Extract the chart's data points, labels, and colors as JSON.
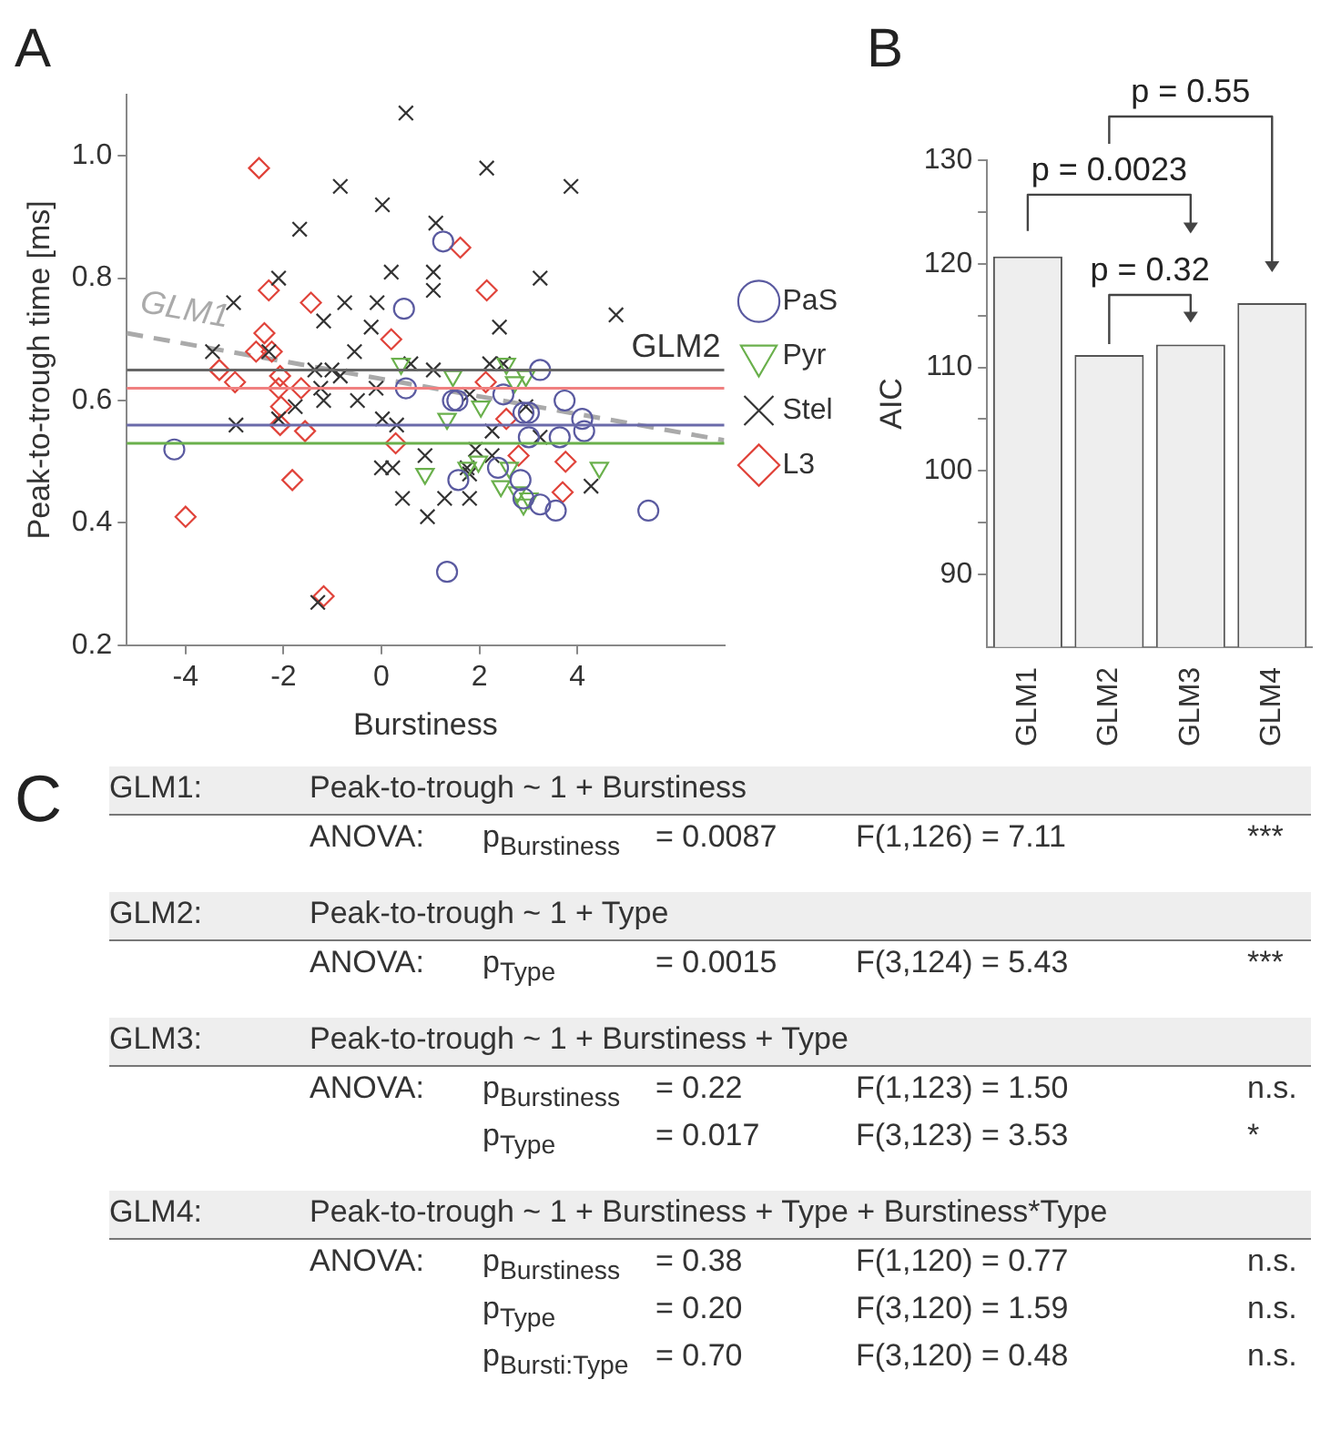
{
  "chart_data": [
    {
      "type": "scatter",
      "title": "A",
      "xlabel": "Burstiness",
      "ylabel": "Peak-to-trough time [ms]",
      "xlim": [
        -5.2,
        7
      ],
      "xticks": [
        -4,
        -2,
        0,
        2,
        4
      ],
      "ylim": [
        0.2,
        1.1
      ],
      "yticks": [
        0.2,
        0.4,
        0.6,
        0.8,
        {
          "value": 1,
          "label": "1.0"
        }
      ],
      "grid": false,
      "legend": "right",
      "series": [
        {
          "name": "PaS",
          "color": "#5a5aa0",
          "marker": "circle",
          "x": [
            -4.23,
            0.46,
            0.5,
            1.26,
            1.46,
            1.55,
            2.49,
            3.24,
            2.9,
            3.01,
            3.74,
            4.1,
            4.14,
            3.01,
            3.64,
            2.38,
            1.57,
            2.84,
            2.9,
            3.24,
            3.56,
            5.45,
            1.34
          ],
          "values": [
            0.52,
            0.75,
            0.62,
            0.86,
            0.6,
            0.6,
            0.61,
            0.65,
            0.58,
            0.58,
            0.6,
            0.57,
            0.55,
            0.54,
            0.54,
            0.49,
            0.47,
            0.47,
            0.44,
            0.43,
            0.42,
            0.42,
            0.32
          ]
        },
        {
          "name": "Pyr",
          "color": "#6ab04c",
          "marker": "triangle",
          "x": [
            0.4,
            1.46,
            2.95,
            2.55,
            1.34,
            2.03,
            1.98,
            1.75,
            0.89,
            2.44,
            2.61,
            2.78,
            2.9,
            3.01,
            4.45,
            2.72
          ],
          "values": [
            0.66,
            0.64,
            0.64,
            0.66,
            0.57,
            0.59,
            0.5,
            0.49,
            0.48,
            0.46,
            0.49,
            0.45,
            0.43,
            0.44,
            0.49,
            0.63
          ]
        },
        {
          "name": "Stel",
          "color": "#333333",
          "marker": "cross",
          "x": [
            0.5,
            -0.84,
            0.02,
            -1.67,
            0.2,
            -2.1,
            -3.02,
            -0.75,
            -0.09,
            -1.18,
            -3.45,
            -0.55,
            -0.21,
            -2.3,
            -2.97,
            -2.1,
            -1.76,
            -1.36,
            -1.24,
            -1.01,
            -0.84,
            -1.18,
            -0.49,
            -0.11,
            0.02,
            0.31,
            0,
            0.23,
            0.43,
            -1.3,
            2.15,
            3.87,
            1.11,
            1.06,
            1.06,
            3.24,
            4.79,
            2.41,
            0.6,
            1.06,
            2.21,
            2.49,
            1.8,
            2.95,
            2.26,
            3.24,
            0.89,
            1.92,
            2.26,
            1.75,
            1.8,
            0.94,
            1.29,
            1.8,
            4.28
          ],
          "values": [
            1.07,
            0.95,
            0.92,
            0.88,
            0.81,
            0.8,
            0.76,
            0.76,
            0.76,
            0.73,
            0.68,
            0.68,
            0.72,
            0.68,
            0.56,
            0.57,
            0.59,
            0.65,
            0.62,
            0.65,
            0.64,
            0.6,
            0.6,
            0.62,
            0.57,
            0.56,
            0.49,
            0.49,
            0.44,
            0.27,
            0.98,
            0.95,
            0.89,
            0.81,
            0.78,
            0.8,
            0.74,
            0.72,
            0.66,
            0.65,
            0.66,
            0.66,
            0.61,
            0.59,
            0.55,
            0.54,
            0.51,
            0.52,
            0.51,
            0.49,
            0.48,
            0.41,
            0.44,
            0.44,
            0.46
          ]
        },
        {
          "name": "L3",
          "color": "#e0433a",
          "marker": "diamond",
          "x": [
            -2.5,
            -4,
            -3.31,
            -2.99,
            -2.56,
            -2.39,
            -2.3,
            -2.24,
            -2.07,
            -2.1,
            -2.05,
            -2.07,
            -1.64,
            -1.56,
            -1.44,
            -1.82,
            -1.18,
            0.2,
            0.29,
            1.61,
            2.15,
            2.13,
            2.55,
            2.8,
            3.76,
            3.7
          ],
          "values": [
            0.98,
            0.41,
            0.65,
            0.63,
            0.68,
            0.71,
            0.78,
            0.68,
            0.64,
            0.62,
            0.59,
            0.56,
            0.62,
            0.55,
            0.76,
            0.47,
            0.28,
            0.7,
            0.53,
            0.85,
            0.78,
            0.63,
            0.57,
            0.51,
            0.5,
            0.45
          ]
        },
        {
          "name": "GLM1",
          "type": "line",
          "color": "#aaaaaa",
          "marker": "none",
          "line_style": "dashed",
          "x": [
            -5.2,
            7
          ],
          "values": [
            0.71,
            0.535
          ]
        }
      ],
      "ref_lines": [
        {
          "axis": "y",
          "value": 0.65,
          "label": "GLM2",
          "color": "#666666"
        },
        {
          "axis": "y",
          "value": 0.62,
          "color": "#f08080"
        },
        {
          "axis": "y",
          "value": 0.56,
          "color": "#6a6aaa"
        },
        {
          "axis": "y",
          "value": 0.53,
          "color": "#6ab04c"
        }
      ]
    },
    {
      "type": "bar",
      "title": "B",
      "ylabel": "AIC",
      "categories": [
        "GLM1",
        "GLM2",
        "GLM3",
        "GLM4"
      ],
      "values": [
        120.7,
        111.2,
        112.2,
        116.2
      ],
      "color": "#eeeeee",
      "ylim": [
        83,
        130
      ],
      "yticks": [
        90,
        {
          "value": 95,
          "label": null
        },
        100,
        {
          "value": 105,
          "label": null
        },
        110,
        {
          "value": 115,
          "label": null
        },
        120,
        {
          "value": 125,
          "label": null
        },
        130
      ],
      "grid": false,
      "annotations": [
        "p = 0.0023",
        "p = 0.32",
        "p = 0.55"
      ]
    },
    {
      "type": "other",
      "title": "C",
      "annotations": [
        "GLM1:",
        "Peak-to-trough ~ 1 + Burstiness",
        "ANOVA:",
        "p$_{Burstiness}$",
        "= 0.0087",
        "F(1,126) = 7.11",
        "***",
        "GLM2:",
        "Peak-to-trough ~ 1 + Type",
        "ANOVA:",
        "p$_{Type}$",
        "= 0.0015",
        "F(3,124) = 5.43",
        "***",
        "GLM3:",
        "Peak-to-trough ~ 1 + Burstiness + Type",
        "ANOVA:",
        "p$_{Burstiness}$",
        "= 0.22",
        "F(1,123) = 1.50",
        "n.s.",
        "p$_{Type}$",
        "= 0.017",
        "F(3,123) = 3.53",
        "*",
        "GLM4:",
        "Peak-to-trough ~ 1 + Burstiness + Type + Burstiness*Type",
        "ANOVA:",
        "p$_{Burstiness}$",
        "= 0.38",
        "F(1,120) = 0.77",
        "n.s.",
        "p$_{Type}$",
        "= 0.20",
        "F(3,120) = 1.59",
        "n.s.",
        "p$_{Bursti:Type}$",
        "= 0.70",
        "F(3,120) = 0.48",
        "n.s."
      ]
    }
  ]
}
